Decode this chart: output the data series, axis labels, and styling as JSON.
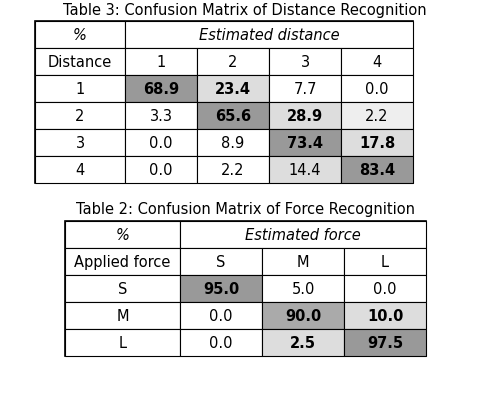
{
  "table2_title": "Table 2: Confusion Matrix of Force Recognition",
  "table3_title": "Table 3: Confusion Matrix of Distance Recognition",
  "table2_header_row1_left": "%",
  "table2_header_row1_right": "Estimated force",
  "table2_header_row2": [
    "Applied force",
    "S",
    "M",
    "L"
  ],
  "table2_data": [
    [
      "S",
      "95.0",
      "5.0",
      "0.0"
    ],
    [
      "M",
      "0.0",
      "90.0",
      "10.0"
    ],
    [
      "L",
      "0.0",
      "2.5",
      "97.5"
    ]
  ],
  "table2_bold": [
    [
      true,
      false,
      false
    ],
    [
      false,
      true,
      true
    ],
    [
      false,
      true,
      true
    ]
  ],
  "table2_cell_colors": [
    [
      "#999999",
      "#ffffff",
      "#ffffff"
    ],
    [
      "#ffffff",
      "#aaaaaa",
      "#dddddd"
    ],
    [
      "#ffffff",
      "#dddddd",
      "#999999"
    ]
  ],
  "table3_header_row1_left": "%",
  "table3_header_row1_right": "Estimated distance",
  "table3_header_row2": [
    "Distance",
    "1",
    "2",
    "3",
    "4"
  ],
  "table3_data": [
    [
      "1",
      "68.9",
      "23.4",
      "7.7",
      "0.0"
    ],
    [
      "2",
      "3.3",
      "65.6",
      "28.9",
      "2.2"
    ],
    [
      "3",
      "0.0",
      "8.9",
      "73.4",
      "17.8"
    ],
    [
      "4",
      "0.0",
      "2.2",
      "14.4",
      "83.4"
    ]
  ],
  "table3_bold": [
    [
      true,
      true,
      false,
      false
    ],
    [
      false,
      true,
      true,
      false
    ],
    [
      false,
      false,
      true,
      true
    ],
    [
      false,
      false,
      false,
      true
    ]
  ],
  "table3_cell_colors": [
    [
      "#999999",
      "#dddddd",
      "#ffffff",
      "#ffffff"
    ],
    [
      "#ffffff",
      "#999999",
      "#dddddd",
      "#eeeeee"
    ],
    [
      "#ffffff",
      "#ffffff",
      "#999999",
      "#dddddd"
    ],
    [
      "#ffffff",
      "#ffffff",
      "#dddddd",
      "#999999"
    ]
  ],
  "bg_color": "#ffffff",
  "cell_fontsize": 10.5
}
